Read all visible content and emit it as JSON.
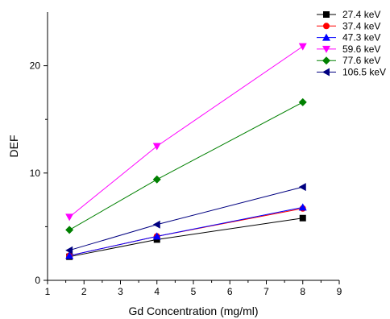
{
  "chart_data": {
    "type": "line",
    "xlabel": "Gd Concentration (mg/ml)",
    "ylabel": "DEF",
    "xlim": [
      1,
      9
    ],
    "ylim": [
      0,
      25
    ],
    "xticks": [
      1,
      2,
      3,
      4,
      5,
      6,
      7,
      8,
      9
    ],
    "yticks": [
      0,
      10,
      20
    ],
    "grid": false,
    "legend_position": "top-right",
    "x": [
      1.6,
      4,
      8
    ],
    "series": [
      {
        "name": "27.4 keV",
        "values": [
          2.2,
          3.8,
          5.8
        ],
        "color": "#000000",
        "marker": "square"
      },
      {
        "name": "37.4 keV",
        "values": [
          2.3,
          4.1,
          6.7
        ],
        "color": "#ff0000",
        "marker": "circle"
      },
      {
        "name": "47.3 keV",
        "values": [
          2.3,
          4.1,
          6.8
        ],
        "color": "#0000ff",
        "marker": "triangle-up"
      },
      {
        "name": "59.6 keV",
        "values": [
          5.9,
          12.5,
          21.8
        ],
        "color": "#ff00ff",
        "marker": "triangle-down"
      },
      {
        "name": "77.6 keV",
        "values": [
          4.7,
          9.4,
          16.6
        ],
        "color": "#008000",
        "marker": "diamond"
      },
      {
        "name": "106.5 keV",
        "values": [
          2.8,
          5.2,
          8.7
        ],
        "color": "#000080",
        "marker": "triangle-left"
      }
    ]
  }
}
